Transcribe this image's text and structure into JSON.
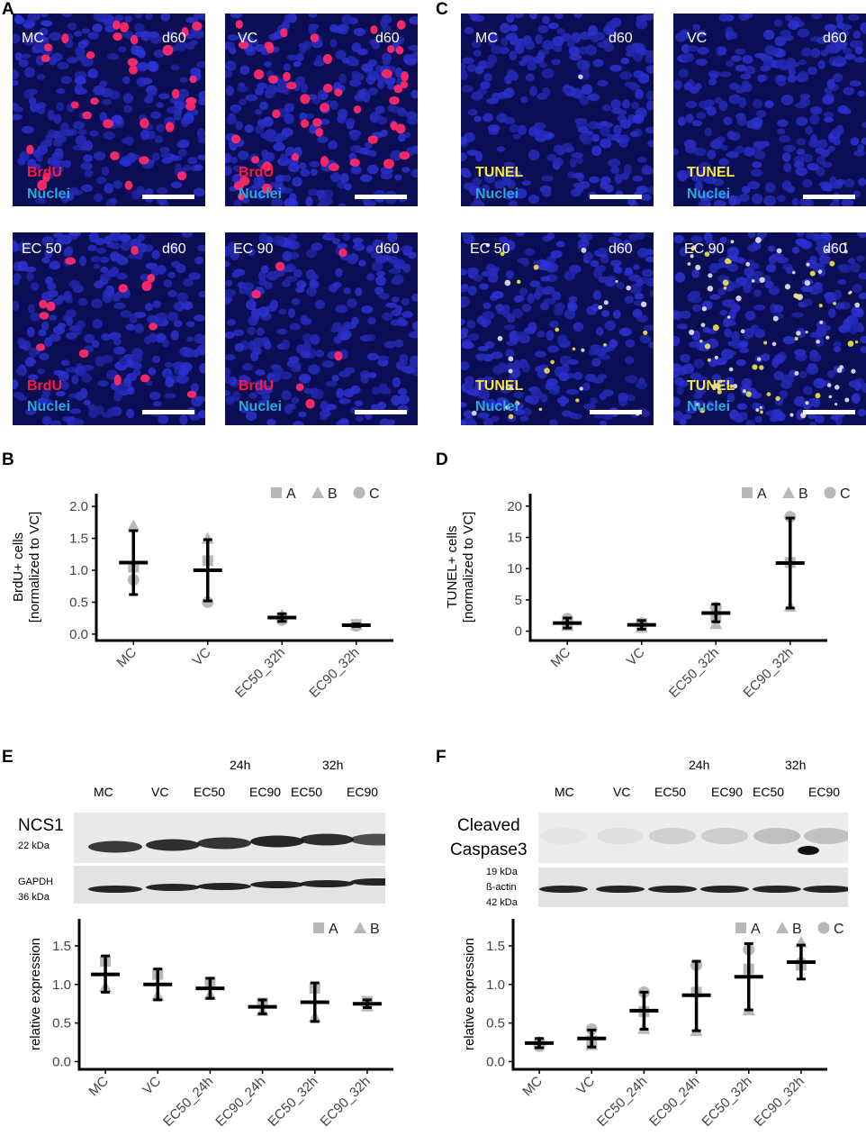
{
  "panels": {
    "A": "A",
    "B": "B",
    "C": "C",
    "D": "D",
    "E": "E",
    "F": "F"
  },
  "micrographs": {
    "A": [
      {
        "condition": "MC",
        "day": "d60",
        "stain": "BrdU",
        "nuclei": "Nuclei"
      },
      {
        "condition": "VC",
        "day": "d60",
        "stain": "BrdU",
        "nuclei": "Nuclei"
      },
      {
        "condition": "EC 50",
        "day": "d60",
        "stain": "BrdU",
        "nuclei": "Nuclei"
      },
      {
        "condition": "EC 90",
        "day": "d60",
        "stain": "BrdU",
        "nuclei": "Nuclei"
      }
    ],
    "C": [
      {
        "condition": "MC",
        "day": "d60",
        "stain": "TUNEL",
        "nuclei": "Nuclei"
      },
      {
        "condition": "VC",
        "day": "d60",
        "stain": "TUNEL",
        "nuclei": "Nuclei"
      },
      {
        "condition": "EC 50",
        "day": "d60",
        "stain": "TUNEL",
        "nuclei": "Nuclei"
      },
      {
        "condition": "EC 90",
        "day": "d60",
        "stain": "TUNEL",
        "nuclei": "Nuclei"
      }
    ],
    "colors": {
      "nuclei_bg": "#1a1f9e",
      "brdu": "#ff1a3c",
      "tunel": "#f5e642",
      "nuclei_text": "#29a8e0"
    }
  },
  "blots": {
    "E": {
      "time_labels": [
        "24h",
        "32h"
      ],
      "lanes": [
        "MC",
        "VC",
        "EC50",
        "EC90",
        "EC50",
        "EC90"
      ],
      "band1_name": "NCS1",
      "band1_kda": "22 kDa",
      "band2_name": "GAPDH",
      "band2_kda": "36 kDa"
    },
    "F": {
      "time_labels": [
        "24h",
        "32h"
      ],
      "lanes": [
        "MC",
        "VC",
        "EC50",
        "EC90",
        "EC50",
        "EC90"
      ],
      "band1_name_line1": "Cleaved",
      "band1_name_line2": "Caspase3",
      "band1_kda": "19 kDa",
      "band2_name": "ß-actin",
      "band2_kda": "42 kDa"
    }
  },
  "chart_data": [
    {
      "panel": "B",
      "type": "scatter",
      "ylabel": "BrdU+ cells\n[normalized to VC]",
      "categories": [
        "MC",
        "VC",
        "EC50_32h",
        "EC90_32h"
      ],
      "yticks": [
        "0.0",
        "0.5",
        "1.0",
        "1.5",
        "2.0"
      ],
      "ylim": [
        -0.1,
        2.2
      ],
      "legend": [
        "A",
        "B",
        "C"
      ],
      "legend_position": "top-right",
      "mean": [
        1.12,
        1.0,
        0.26,
        0.14
      ],
      "sd_low": [
        0.62,
        0.52,
        0.2,
        0.12
      ],
      "sd_high": [
        1.62,
        1.48,
        0.32,
        0.16
      ],
      "points": {
        "A": [
          1.05,
          1.15,
          0.25,
          0.15
        ],
        "B": [
          1.7,
          1.5,
          0.3,
          0.15
        ],
        "C": [
          0.85,
          0.5,
          0.22,
          0.13
        ]
      }
    },
    {
      "panel": "D",
      "type": "scatter",
      "ylabel": "TUNEL+ cells\n[normalized to VC]",
      "categories": [
        "MC",
        "VC",
        "EC50_32h",
        "EC90_32h"
      ],
      "yticks": [
        "0",
        "5",
        "10",
        "15",
        "20"
      ],
      "ylim": [
        -1.5,
        22
      ],
      "legend": [
        "A",
        "B",
        "C"
      ],
      "legend_position": "top-right",
      "mean": [
        1.3,
        1.0,
        2.9,
        10.9
      ],
      "sd_low": [
        0.5,
        0.3,
        1.5,
        3.7
      ],
      "sd_high": [
        2.1,
        1.7,
        4.3,
        18.1
      ],
      "points": {
        "A": [
          1.0,
          1.2,
          2.4,
          11.0
        ],
        "B": [
          0.9,
          0.6,
          1.2,
          4.0
        ],
        "C": [
          2.0,
          1.3,
          3.8,
          18.3
        ]
      }
    },
    {
      "panel": "E",
      "type": "scatter",
      "ylabel": "relative expression",
      "categories": [
        "MC",
        "VC",
        "EC50_24h",
        "EC90_24h",
        "EC50_32h",
        "EC90_32h"
      ],
      "yticks": [
        "0.0",
        "0.5",
        "1.0",
        "1.5"
      ],
      "ylim": [
        -0.1,
        1.85
      ],
      "legend": [
        "A",
        "B"
      ],
      "legend_position": "top-right",
      "mean": [
        1.13,
        1.0,
        0.95,
        0.71,
        0.77,
        0.75
      ],
      "sd_low": [
        0.9,
        0.8,
        0.82,
        0.62,
        0.52,
        0.7
      ],
      "sd_high": [
        1.37,
        1.2,
        1.08,
        0.8,
        1.02,
        0.8
      ],
      "points": {
        "A": [
          1.3,
          1.13,
          1.03,
          0.76,
          0.95,
          0.78
        ],
        "B": [
          0.97,
          0.86,
          0.87,
          0.66,
          0.58,
          0.72
        ]
      }
    },
    {
      "panel": "F",
      "type": "scatter",
      "ylabel": "relative expression",
      "categories": [
        "MC",
        "VC",
        "EC50_24h",
        "EC90_24h",
        "EC50_32h",
        "EC90_32h"
      ],
      "yticks": [
        "0.0",
        "0.5",
        "1.0",
        "1.5"
      ],
      "ylim": [
        -0.1,
        1.85
      ],
      "legend": [
        "A",
        "B",
        "C"
      ],
      "legend_position": "top-right",
      "mean": [
        0.24,
        0.3,
        0.66,
        0.86,
        1.1,
        1.29
      ],
      "sd_low": [
        0.18,
        0.19,
        0.42,
        0.4,
        0.67,
        1.07
      ],
      "sd_high": [
        0.3,
        0.41,
        0.9,
        1.3,
        1.53,
        1.51
      ],
      "points": {
        "A": [
          0.23,
          0.27,
          0.65,
          0.9,
          1.2,
          1.25
        ],
        "B": [
          0.26,
          0.22,
          0.43,
          0.4,
          0.67,
          1.55
        ],
        "C": [
          0.2,
          0.42,
          0.9,
          1.25,
          1.45,
          1.28
        ]
      }
    }
  ]
}
